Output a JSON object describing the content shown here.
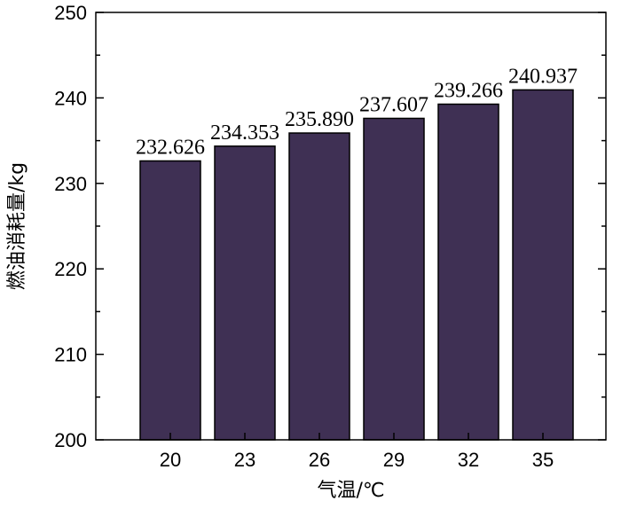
{
  "chart_data": {
    "type": "bar",
    "categories": [
      "20",
      "23",
      "26",
      "29",
      "32",
      "35"
    ],
    "values": [
      232.626,
      234.353,
      235.89,
      237.607,
      239.266,
      240.937
    ],
    "value_labels": [
      "232.626",
      "234.353",
      "235.890",
      "237.607",
      "239.266",
      "240.937"
    ],
    "xlabel": "气温/℃",
    "ylabel": "燃油消耗量/kg",
    "ylim": [
      200,
      250
    ],
    "yticks": [
      200,
      210,
      220,
      230,
      240,
      250
    ],
    "bar_color": "#3f3054",
    "grid": false
  }
}
